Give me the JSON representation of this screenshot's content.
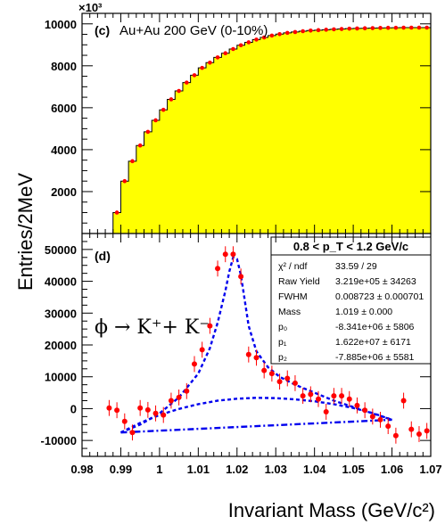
{
  "y_axis_title": "Entries/2MeV",
  "x_axis_title": "Invariant Mass (GeV/c²)",
  "x_ticks": [
    "0.98",
    "0.99",
    "1",
    "1.01",
    "1.02",
    "1.03",
    "1.04",
    "1.05",
    "1.06",
    "1.07"
  ],
  "colors": {
    "histogram_fill": "#ffff00",
    "points": "#ff0000",
    "fit": "#0000ee"
  },
  "chart_data": [
    {
      "type": "bar",
      "panel": "(c)",
      "title": "Au+Au 200 GeV (0-10%)",
      "y_multiplier": "×10³",
      "xlabel": "Invariant Mass (GeV/c²)",
      "ylabel": "Entries/2MeV",
      "xlim": [
        0.98,
        1.07
      ],
      "ylim": [
        0,
        10500
      ],
      "y_ticks": [
        "2000",
        "4000",
        "6000",
        "8000",
        "10000"
      ],
      "bin_width": 0.002,
      "x": [
        0.989,
        0.991,
        0.993,
        0.995,
        0.997,
        0.999,
        1.001,
        1.003,
        1.005,
        1.007,
        1.009,
        1.011,
        1.013,
        1.015,
        1.017,
        1.019,
        1.021,
        1.023,
        1.025,
        1.027,
        1.029,
        1.031,
        1.033,
        1.035,
        1.037,
        1.039,
        1.041,
        1.043,
        1.045,
        1.047,
        1.049,
        1.051,
        1.053,
        1.055,
        1.057,
        1.059,
        1.061,
        1.063,
        1.065,
        1.067,
        1.069
      ],
      "values": [
        1000,
        2500,
        3450,
        4200,
        4850,
        5400,
        5900,
        6400,
        6800,
        7200,
        7550,
        7900,
        8150,
        8400,
        8600,
        8800,
        8980,
        9120,
        9250,
        9350,
        9440,
        9510,
        9570,
        9610,
        9650,
        9680,
        9700,
        9720,
        9740,
        9755,
        9770,
        9780,
        9790,
        9798,
        9805,
        9810,
        9815,
        9818,
        9820,
        9820,
        9820
      ]
    },
    {
      "type": "scatter",
      "panel": "(d)",
      "reaction": "ϕ → K⁺+ K⁻",
      "xlabel": "Invariant Mass (GeV/c²)",
      "ylabel": "Entries/2MeV",
      "xlim": [
        0.98,
        1.07
      ],
      "ylim": [
        -15000,
        55000
      ],
      "y_ticks": [
        "-10000",
        "0",
        "10000",
        "20000",
        "30000",
        "40000",
        "50000"
      ],
      "points": {
        "x": [
          0.987,
          0.989,
          0.991,
          0.993,
          0.995,
          0.997,
          0.999,
          1.001,
          1.003,
          1.005,
          1.007,
          1.009,
          1.011,
          1.013,
          1.015,
          1.017,
          1.019,
          1.021,
          1.023,
          1.025,
          1.027,
          1.029,
          1.031,
          1.033,
          1.035,
          1.037,
          1.039,
          1.041,
          1.043,
          1.045,
          1.047,
          1.049,
          1.051,
          1.053,
          1.055,
          1.057,
          1.059,
          1.061,
          1.063,
          1.065,
          1.067,
          1.069
        ],
        "y": [
          200,
          -500,
          -4000,
          -7500,
          200,
          -400,
          -1500,
          -2000,
          2500,
          3500,
          5500,
          14000,
          18500,
          26000,
          44000,
          48500,
          48500,
          41500,
          17000,
          16000,
          12000,
          11000,
          8500,
          9500,
          8000,
          4000,
          4500,
          3000,
          -1000,
          4000,
          4000,
          3000,
          1000,
          -500,
          -2500,
          -3500,
          -5500,
          -8500,
          2500,
          -6500,
          -8000,
          -7000
        ],
        "err": [
          2500,
          2500,
          2500,
          2500,
          2500,
          2500,
          2500,
          2500,
          2500,
          2500,
          2500,
          2500,
          2500,
          2500,
          2500,
          2500,
          2500,
          2500,
          2500,
          2500,
          2500,
          2500,
          2500,
          2500,
          2500,
          2500,
          2500,
          2500,
          2500,
          2500,
          2500,
          2500,
          2500,
          2500,
          2500,
          2500,
          2500,
          2500,
          2500,
          2500,
          2500,
          2500
        ]
      },
      "fit_curves": [
        {
          "style": "dashed",
          "role": "total",
          "x": [
            0.99,
            0.995,
            1.0,
            1.005,
            1.01,
            1.013,
            1.015,
            1.017,
            1.018,
            1.019,
            1.02,
            1.021,
            1.022,
            1.023,
            1.025,
            1.028,
            1.031,
            1.035,
            1.04,
            1.045,
            1.05,
            1.055,
            1.06
          ],
          "y": [
            -7500,
            -5000,
            -1500,
            3500,
            11000,
            19000,
            27000,
            37000,
            43000,
            47500,
            47000,
            42000,
            34000,
            26000,
            18000,
            13000,
            10000,
            7500,
            5000,
            2500,
            500,
            -1500,
            -3500
          ]
        },
        {
          "style": "dashed",
          "role": "background",
          "x": [
            0.99,
            0.995,
            1.0,
            1.005,
            1.01,
            1.015,
            1.02,
            1.025,
            1.03,
            1.035,
            1.04,
            1.045,
            1.05,
            1.055,
            1.06
          ],
          "y": [
            -7500,
            -4500,
            -2000,
            -100,
            1400,
            2500,
            3100,
            3400,
            3300,
            2900,
            2300,
            1400,
            200,
            -1400,
            -3500
          ]
        },
        {
          "style": "dashdot",
          "role": "residual",
          "x": [
            0.99,
            1.06
          ],
          "y": [
            -7500,
            -3500
          ]
        }
      ],
      "stats_box": {
        "header": "0.8 < p_T < 1.2 GeV/c",
        "rows": [
          {
            "label": "χ² / ndf",
            "value": "33.59 / 29"
          },
          {
            "label": "Raw Yield",
            "value": "3.219e+05 ± 34263"
          },
          {
            "label": "FWHM",
            "value": "0.008723 ± 0.000701"
          },
          {
            "label": "Mass",
            "value": "1.019 ± 0.000"
          },
          {
            "label": "p₀",
            "value": "-8.341e+06 ± 5806"
          },
          {
            "label": "p₁",
            "value": "1.622e+07 ± 6171"
          },
          {
            "label": "p₂",
            "value": "-7.885e+06 ± 5581"
          }
        ]
      }
    }
  ]
}
